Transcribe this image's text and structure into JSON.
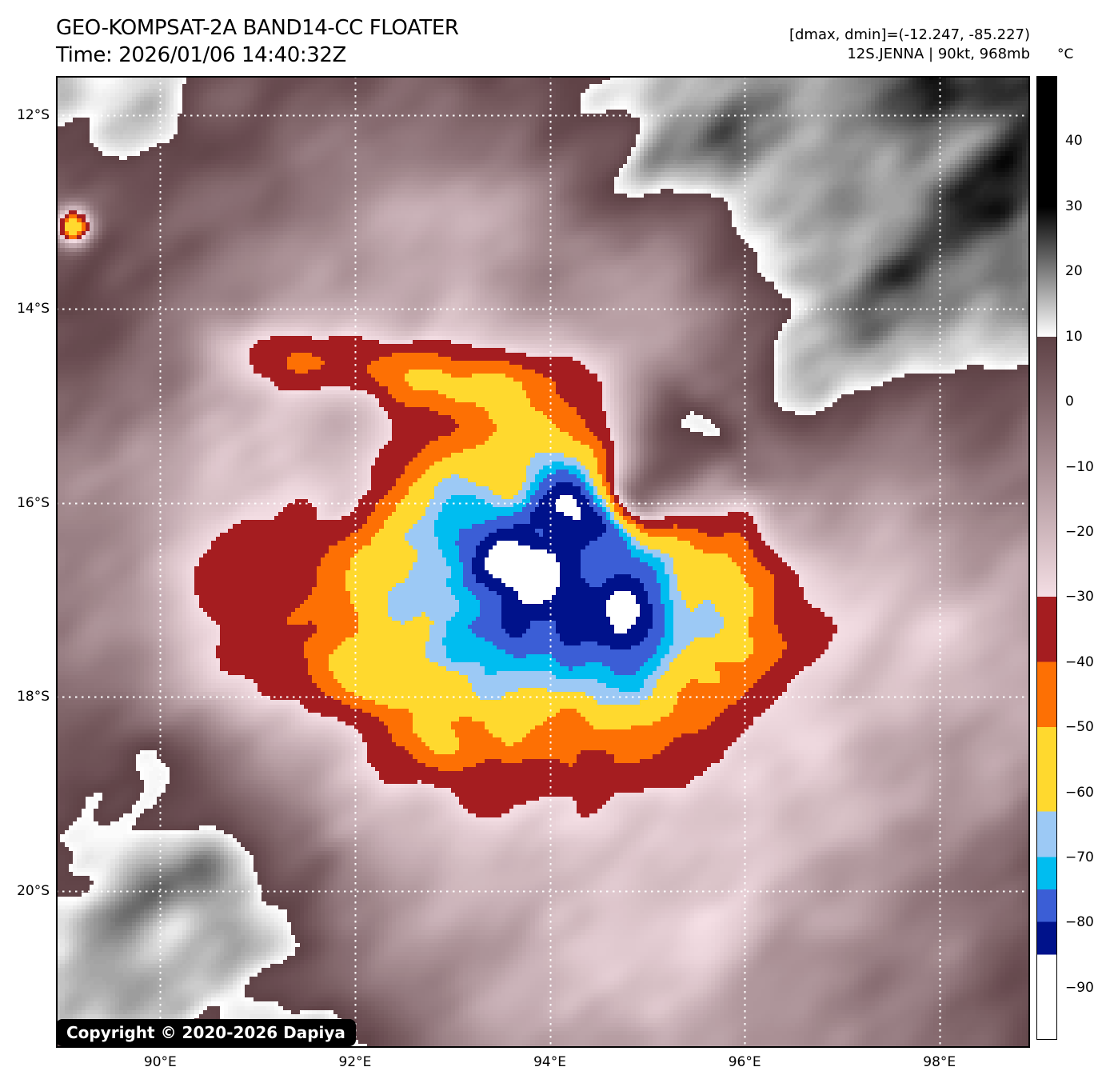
{
  "header": {
    "title": "GEO-KOMPSAT-2A BAND14-CC FLOATER",
    "time": "Time: 2026/01/06 14:40:32Z"
  },
  "info": {
    "dmax_dmin": "[dmax, dmin]=(-12.247, -85.227)",
    "storm": "12S.JENNA | 90kt, 968mb"
  },
  "colorbar": {
    "unit": "°C",
    "top_value": 50,
    "bottom_value": -98,
    "ticks": [
      {
        "label": "40",
        "value": 40
      },
      {
        "label": "30",
        "value": 30
      },
      {
        "label": "20",
        "value": 20
      },
      {
        "label": "10",
        "value": 10
      },
      {
        "label": "0",
        "value": 0
      },
      {
        "label": "−10",
        "value": -10
      },
      {
        "label": "−20",
        "value": -20
      },
      {
        "label": "−30",
        "value": -30
      },
      {
        "label": "−40",
        "value": -40
      },
      {
        "label": "−50",
        "value": -50
      },
      {
        "label": "−60",
        "value": -60
      },
      {
        "label": "−70",
        "value": -70
      },
      {
        "label": "−80",
        "value": -80
      },
      {
        "label": "−90",
        "value": -90
      }
    ],
    "palette": [
      {
        "from": 50,
        "to": 30,
        "type": "solid",
        "color": "#000000"
      },
      {
        "from": 30,
        "to": 10,
        "type": "gradient",
        "color_start": "#000000",
        "color_end": "#ffffff"
      },
      {
        "from": 10,
        "to": -30,
        "type": "gradient",
        "color_start": "#5e4145",
        "color_end": "#f4dee4"
      },
      {
        "from": -30,
        "to": -40,
        "type": "solid",
        "color": "#a51d20"
      },
      {
        "from": -40,
        "to": -50,
        "type": "solid",
        "color": "#fd7004"
      },
      {
        "from": -50,
        "to": -63,
        "type": "solid",
        "color": "#ffd92e"
      },
      {
        "from": -63,
        "to": -70,
        "type": "solid",
        "color": "#9cc9f5"
      },
      {
        "from": -70,
        "to": -75,
        "type": "solid",
        "color": "#00bdf0"
      },
      {
        "from": -75,
        "to": -80,
        "type": "solid",
        "color": "#3b5ed6"
      },
      {
        "from": -80,
        "to": -85,
        "type": "solid",
        "color": "#00128b"
      },
      {
        "from": -85,
        "to": -98,
        "type": "solid",
        "color": "#ffffff"
      }
    ]
  },
  "map": {
    "copyright": "Copyright © 2020-2026 Dapiya",
    "gridline_color": "#ffffff",
    "lat_ticks": [
      {
        "label": "12°S",
        "value": 12
      },
      {
        "label": "14°S",
        "value": 14
      },
      {
        "label": "16°S",
        "value": 16
      },
      {
        "label": "18°S",
        "value": 18
      },
      {
        "label": "20°S",
        "value": 20
      }
    ],
    "lon_ticks": [
      {
        "label": "90°E",
        "value": 90
      },
      {
        "label": "92°E",
        "value": 92
      },
      {
        "label": "94°E",
        "value": 94
      },
      {
        "label": "96°E",
        "value": 96
      },
      {
        "label": "98°E",
        "value": 98
      }
    ]
  }
}
